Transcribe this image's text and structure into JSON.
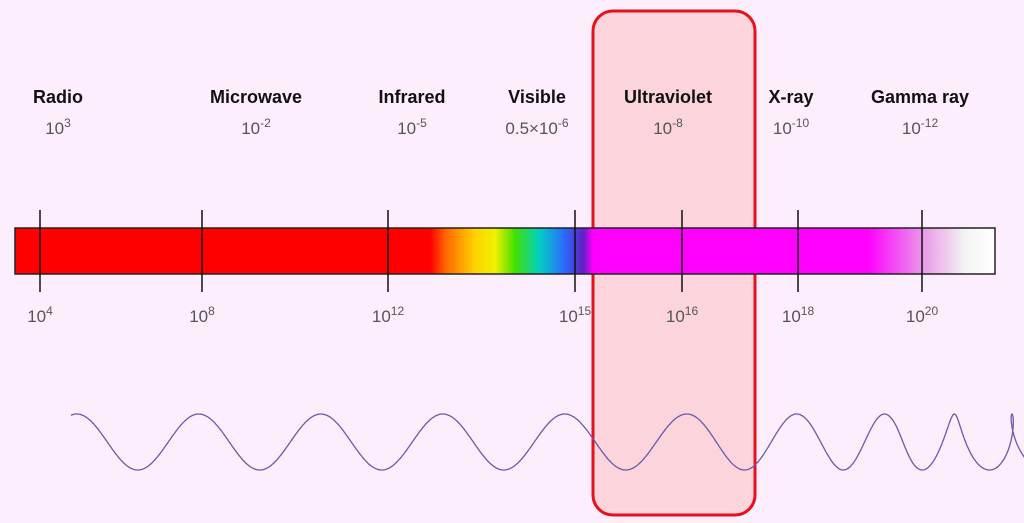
{
  "bands": [
    {
      "name": "Radio",
      "wavelength": {
        "base": "10",
        "exp": "3"
      }
    },
    {
      "name": "Microwave",
      "wavelength": {
        "base": "10",
        "exp": "-2"
      }
    },
    {
      "name": "Infrared",
      "wavelength": {
        "base": "10",
        "exp": "-5"
      }
    },
    {
      "name": "Visible",
      "wavelength": {
        "base": "0.5×10",
        "exp": "-6"
      }
    },
    {
      "name": "Ultraviolet",
      "wavelength": {
        "base": "10",
        "exp": "-8"
      }
    },
    {
      "name": "X-ray",
      "wavelength": {
        "base": "10",
        "exp": "-10"
      }
    },
    {
      "name": "Gamma ray",
      "wavelength": {
        "base": "10",
        "exp": "-12"
      }
    }
  ],
  "frequency_ticks": [
    {
      "base": "10",
      "exp": "4"
    },
    {
      "base": "10",
      "exp": "8"
    },
    {
      "base": "10",
      "exp": "12"
    },
    {
      "base": "10",
      "exp": "15"
    },
    {
      "base": "10",
      "exp": "16"
    },
    {
      "base": "10",
      "exp": "18"
    },
    {
      "base": "10",
      "exp": "20"
    }
  ]
}
